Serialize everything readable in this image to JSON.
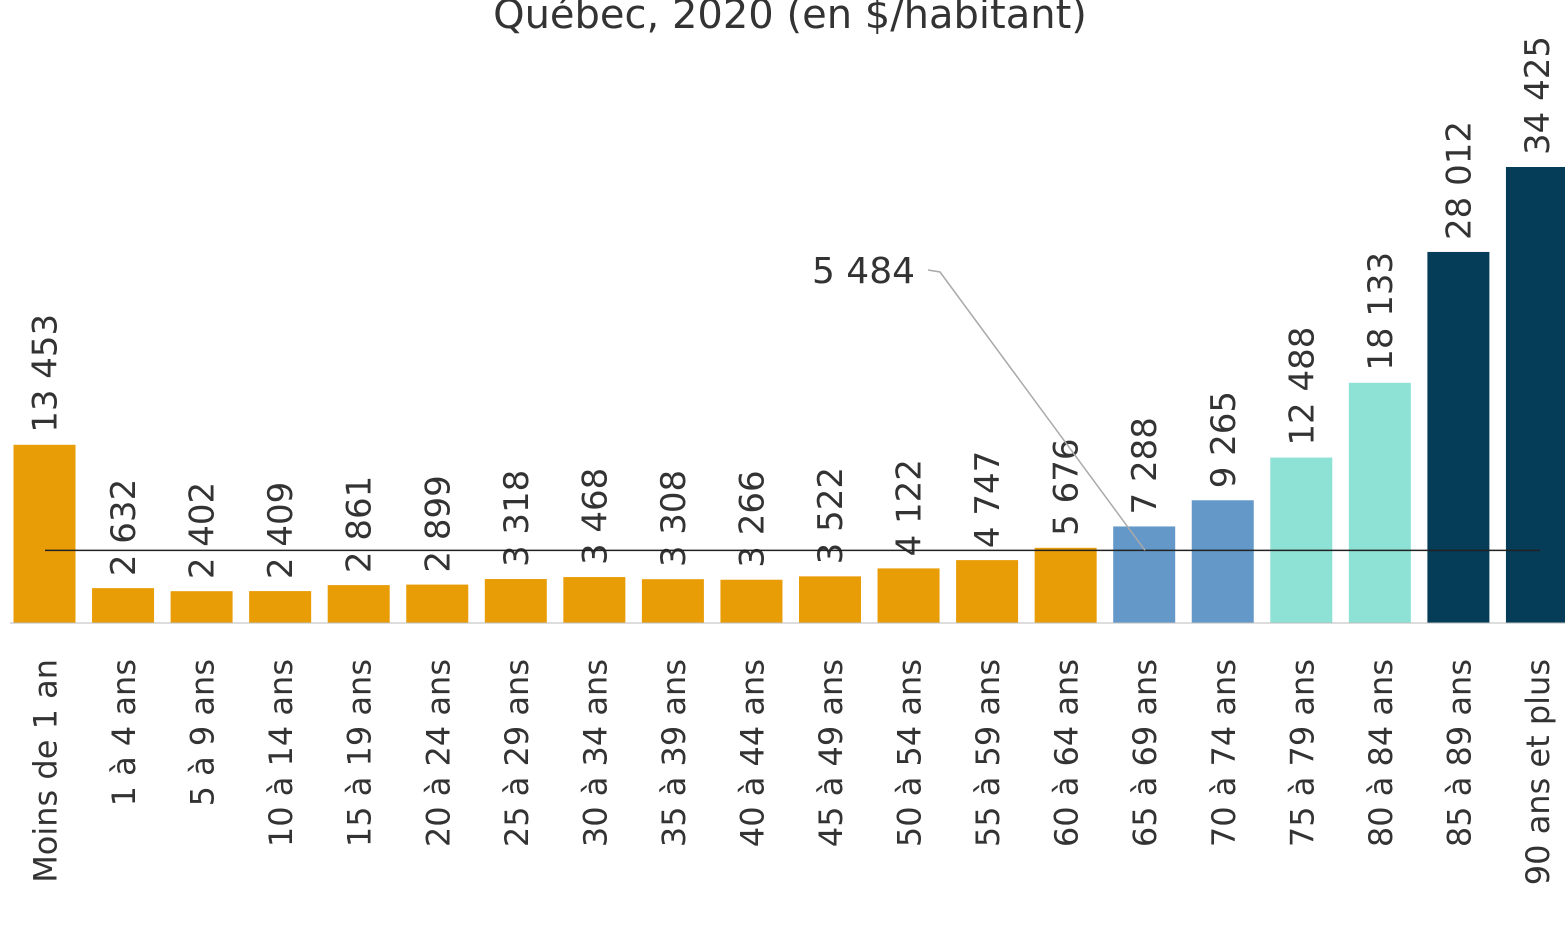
{
  "chart_data": {
    "type": "bar",
    "title": "Québec, 2020 (en $/habitant)",
    "categories": [
      "Moins de 1 an",
      "1 à 4 ans",
      "5 à 9 ans",
      "10 à 14 ans",
      "15 à 19 ans",
      "20 à 24 ans",
      "25 à 29 ans",
      "30 à 34 ans",
      "35 à 39 ans",
      "40 à 44 ans",
      "45 à 49 ans",
      "50 à 54 ans",
      "55 à 59 ans",
      "60 à 64 ans",
      "65 à 69 ans",
      "70 à 74 ans",
      "75 à 79 ans",
      "80 à 84 ans",
      "85 à 89 ans",
      "90 ans et plus"
    ],
    "values": [
      13453,
      2632,
      2402,
      2409,
      2861,
      2899,
      3318,
      3468,
      3308,
      3266,
      3522,
      4122,
      4747,
      5676,
      7288,
      9265,
      12488,
      18133,
      28012,
      34425
    ],
    "value_labels": [
      "13 453",
      "2 632",
      "2 402",
      "2 409",
      "2 861",
      "2 899",
      "3 318",
      "3 468",
      "3 308",
      "3 266",
      "3 522",
      "4 122",
      "4 747",
      "5 676",
      "7 288",
      "9 265",
      "12 488",
      "18 133",
      "28 012",
      "34 425"
    ],
    "colors": [
      "#e89c05",
      "#e89c05",
      "#e89c05",
      "#e89c05",
      "#e89c05",
      "#e89c05",
      "#e89c05",
      "#e89c05",
      "#e89c05",
      "#e89c05",
      "#e89c05",
      "#e89c05",
      "#e89c05",
      "#e89c05",
      "#6398c8",
      "#6398c8",
      "#8de1d5",
      "#8de1d5",
      "#053c58",
      "#053c58"
    ],
    "reference_line": {
      "value": 5484,
      "label": "5 484"
    }
  }
}
